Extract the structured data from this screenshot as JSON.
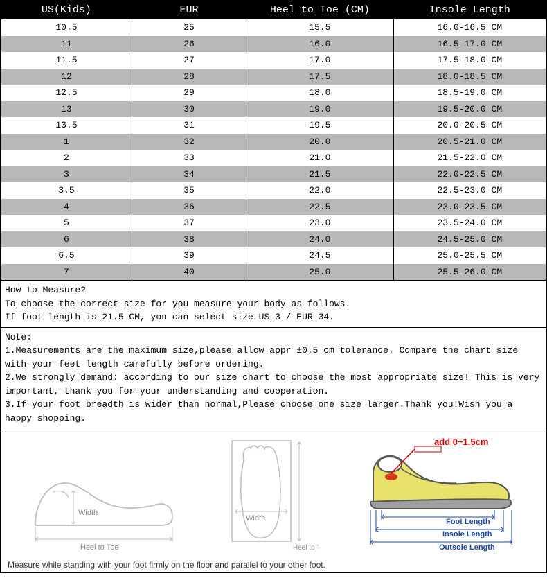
{
  "table": {
    "headers": [
      "US(Kids)",
      "EUR",
      "Heel to Toe (CM)",
      "Insole Length"
    ],
    "header_bg": "#000000",
    "header_fg": "#ffffff",
    "row_bg_white": "#ffffff",
    "row_bg_gray": "#b8b8b8",
    "border_color": "#000000",
    "font_family": "Courier New",
    "header_font_size": 15,
    "cell_font_size": 13,
    "col_widths_pct": [
      24,
      21,
      27,
      28
    ],
    "rows": [
      [
        "10.5",
        "25",
        "15.5",
        "16.0-16.5 CM"
      ],
      [
        "11",
        "26",
        "16.0",
        "16.5-17.0 CM"
      ],
      [
        "11.5",
        "27",
        "17.0",
        "17.5-18.0 CM"
      ],
      [
        "12",
        "28",
        "17.5",
        "18.0-18.5 CM"
      ],
      [
        "12.5",
        "29",
        "18.0",
        "18.5-19.0 CM"
      ],
      [
        "13",
        "30",
        "19.0",
        "19.5-20.0 CM"
      ],
      [
        "13.5",
        "31",
        "19.5",
        "20.0-20.5 CM"
      ],
      [
        "1",
        "32",
        "20.0",
        "20.5-21.0 CM"
      ],
      [
        "2",
        "33",
        "21.0",
        "21.5-22.0 CM"
      ],
      [
        "3",
        "34",
        "21.5",
        "22.0-22.5 CM"
      ],
      [
        "3.5",
        "35",
        "22.0",
        "22.5-23.0 CM"
      ],
      [
        "4",
        "36",
        "22.5",
        "23.0-23.5 CM"
      ],
      [
        "5",
        "37",
        "23.0",
        "23.5-24.0 CM"
      ],
      [
        "6",
        "38",
        "24.0",
        "24.5-25.0 CM"
      ],
      [
        "6.5",
        "39",
        "24.5",
        "25.0-25.5 CM"
      ],
      [
        "7",
        "40",
        "25.0",
        "25.5-26.0 CM"
      ]
    ]
  },
  "how_to": {
    "title": "How to Measure?",
    "line1": "To choose the correct size for you measure your body as follows.",
    "line2": "If foot length is 21.5 CM, you can select size US 3 / EUR 34."
  },
  "note": {
    "title": "Note:",
    "p1": "1.Measurements are the maximum size,please allow appr ±0.5 cm tolerance. Compare the chart size with your feet length carefully before ordering.",
    "p2": "2.We strongly demand: according to our size chart to choose the most appropriate size! This is very important, thank you for your understanding and cooperation.",
    "p3": "3.If your foot breadth is wider than normal,Please choose one size larger.Thank you!Wish you a happy shopping."
  },
  "diagram": {
    "foot_side": {
      "width_label": "Width",
      "heel_toe_label": "Heel to Toe",
      "stroke": "#bdbdbd",
      "text_color": "#888888"
    },
    "foot_top": {
      "width_label": "Width",
      "heel_toe_label": "Heel to Toe",
      "stroke": "#bdbdbd",
      "text_color": "#888888"
    },
    "shoe": {
      "add_label": "add 0~1.5cm",
      "add_color": "#d40000",
      "foot_length_label": "Foot Length",
      "insole_length_label": "Insole Length",
      "outsole_length_label": "Outsole Length",
      "label_color": "#1a4aa8",
      "shoe_fill": "#e8e26a",
      "shoe_stroke": "#555555",
      "sole_fill": "#9e9e9e"
    }
  },
  "caption": "Measure while standing with your foot firmly on the floor and parallel to your other foot."
}
